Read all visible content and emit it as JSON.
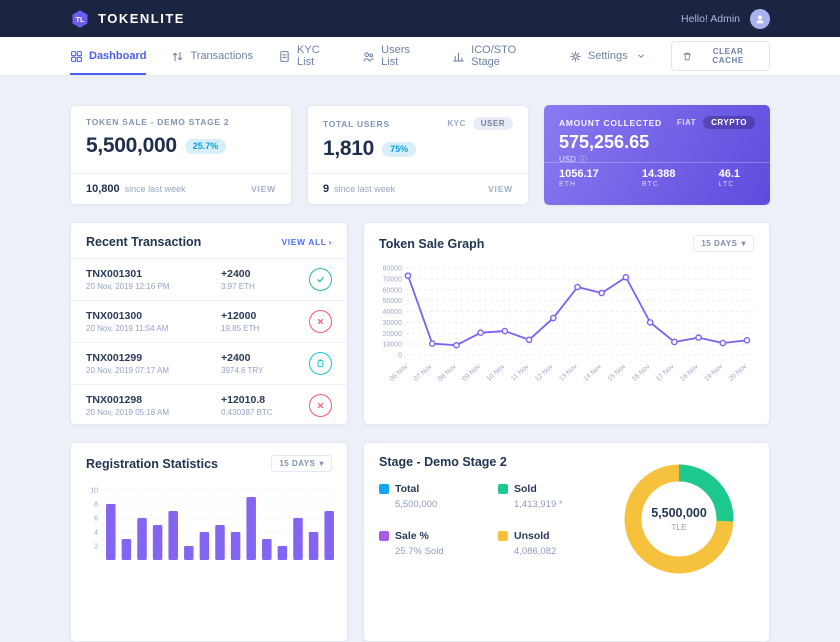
{
  "header": {
    "brand": "TOKENLITE",
    "greeting": "Hello! Admin"
  },
  "nav": {
    "items": [
      {
        "label": "Dashboard"
      },
      {
        "label": "Transactions"
      },
      {
        "label": "KYC List"
      },
      {
        "label": "Users List"
      },
      {
        "label": "ICO/STO Stage"
      },
      {
        "label": "Settings"
      }
    ],
    "clear_cache": "CLEAR CACHE"
  },
  "stats": {
    "token_sale": {
      "title": "TOKEN SALE - DEMO STAGE 2",
      "value": "5,500,000",
      "badge": "25.7%",
      "delta": "10,800",
      "delta_label": "since last week",
      "view": "VIEW"
    },
    "total_users": {
      "title": "TOTAL USERS",
      "toggle": [
        "KYC",
        "USER"
      ],
      "value": "1,810",
      "badge": "75%",
      "delta": "9",
      "delta_label": "since last week",
      "view": "VIEW"
    },
    "amount": {
      "title": "AMOUNT COLLECTED",
      "toggle": [
        "FIAT",
        "CRYPTO"
      ],
      "value": "575,256.65",
      "currency": "USD",
      "cryptos": [
        {
          "value": "1056.17",
          "label": "ETH"
        },
        {
          "value": "14.388",
          "label": "BTC"
        },
        {
          "value": "46.1",
          "label": "LTC"
        }
      ]
    }
  },
  "transactions": {
    "title": "Recent Transaction",
    "view_all": "VIEW ALL",
    "items": [
      {
        "id": "TNX001301",
        "date": "20 Nov, 2019 12:16 PM",
        "amount": "+2400",
        "sub": "3.97 ETH",
        "status": "success"
      },
      {
        "id": "TNX001300",
        "date": "20 Nov, 2019 11:54 AM",
        "amount": "+12000",
        "sub": "19.85 ETH",
        "status": "failed"
      },
      {
        "id": "TNX001299",
        "date": "20 Nov, 2019 07:17 AM",
        "amount": "+2400",
        "sub": "3974.6 TRY",
        "status": "pending"
      },
      {
        "id": "TNX001298",
        "date": "20 Nov, 2019 05:18 AM",
        "amount": "+12010.8",
        "sub": "0.430387 BTC",
        "status": "failed"
      }
    ]
  },
  "stage": {
    "legend": [
      {
        "label": "Total",
        "value": "5,500,000",
        "color": "#0fa7f5"
      },
      {
        "label": "Sold",
        "value": "1,413,919 *",
        "color": "#1ec990"
      },
      {
        "label": "Sale %",
        "value": "25.7% Sold",
        "color": "#a55eea"
      },
      {
        "label": "Unsold",
        "value": "4,086,082",
        "color": "#f6c23e"
      }
    ]
  },
  "icons": {
    "chevron_down": "▾",
    "chevron_right": "›",
    "info": "ⓘ"
  },
  "status_colors": {
    "success": "#23c08a",
    "failed": "#f4586b",
    "pending": "#19c5d6"
  },
  "chart_data": [
    {
      "type": "line",
      "title": "Token Sale Graph",
      "period": "15 DAYS",
      "x": [
        "06 Nov",
        "07 Nov",
        "08 Nov",
        "09 Nov",
        "10 Nov",
        "11 Nov",
        "12 Nov",
        "13 Nov",
        "14 Nov",
        "15 Nov",
        "16 Nov",
        "17 Nov",
        "18 Nov",
        "19 Nov",
        "20 Nov"
      ],
      "values": [
        73000,
        10500,
        9000,
        20500,
        22000,
        14000,
        34000,
        62500,
        57000,
        71500,
        30000,
        12000,
        16000,
        11000,
        13500
      ],
      "ylim": [
        0,
        80000
      ],
      "yticks": [
        0,
        10000,
        20000,
        30000,
        40000,
        50000,
        60000,
        70000,
        80000
      ],
      "line_color": "#7a63f0",
      "grid": true,
      "legend_position": "none"
    },
    {
      "type": "bar",
      "title": "Registration Statistics",
      "period": "15 DAYS",
      "values": [
        8,
        3,
        6,
        5,
        7,
        2,
        4,
        5,
        4,
        9,
        3,
        2,
        6,
        4,
        7
      ],
      "ylim": [
        0,
        10
      ],
      "yticks": [
        2,
        4,
        6,
        8,
        10
      ],
      "bar_color": "#8465f2"
    },
    {
      "type": "pie",
      "title": "Stage - Demo Stage 2",
      "center_value": "5,500,000",
      "center_label": "TLE",
      "slices": [
        {
          "label": "Sold",
          "value": 1413919,
          "color": "#1ec990"
        },
        {
          "label": "Unsold",
          "value": 4086082,
          "color": "#f6c23e"
        }
      ]
    }
  ]
}
